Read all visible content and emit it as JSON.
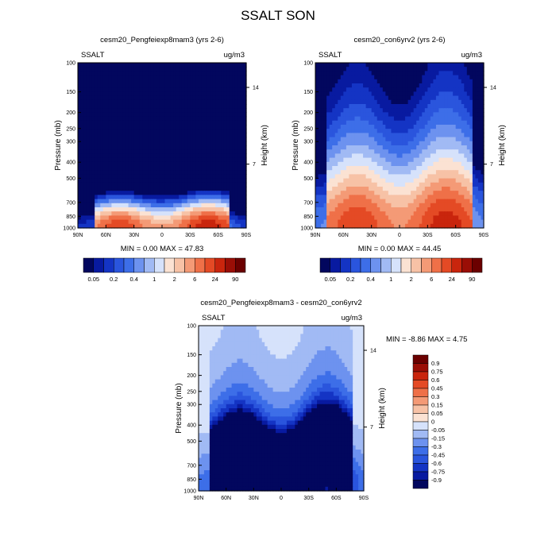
{
  "title": "SSALT SON",
  "pressure_ticks": [
    "100",
    "150",
    "200",
    "250",
    "300",
    "400",
    "500",
    "700",
    "850",
    "1000"
  ],
  "height_ticks": [
    "14",
    "7"
  ],
  "lat_ticks": [
    "90N",
    "60N",
    "30N",
    "0",
    "30S",
    "60S",
    "90S"
  ],
  "abs_levels": [
    "0.05",
    "0.2",
    "0.4",
    "1",
    "2",
    "6",
    "24",
    "90"
  ],
  "diff_levels": [
    "0.9",
    "0.75",
    "0.6",
    "0.45",
    "0.3",
    "0.15",
    "0.05",
    "0",
    "-0.05",
    "-0.15",
    "-0.3",
    "-0.45",
    "-0.6",
    "-0.75",
    "-0.9"
  ],
  "abs_colors": [
    "#02075e",
    "#081aa0",
    "#1434c4",
    "#2a55dd",
    "#3d6ee8",
    "#6d92ef",
    "#a1baf4",
    "#d6e2fb",
    "#fbe2d3",
    "#f7c2a6",
    "#f49a76",
    "#ef7048",
    "#e44a25",
    "#c9250d",
    "#9a0e06",
    "#6b0000"
  ],
  "diff_colors": [
    "#6b0000",
    "#9a0e06",
    "#c9250d",
    "#e44a25",
    "#ef7048",
    "#f49a76",
    "#f7c2a6",
    "#fbe2d3",
    "#d6e2fb",
    "#a1baf4",
    "#6d92ef",
    "#3d6ee8",
    "#2a55dd",
    "#1434c4",
    "#081aa0",
    "#02075e"
  ],
  "chart_data": [
    {
      "type": "heatmap",
      "title": "cesm20_Pengfeiexp8mam3 (yrs 2-6)",
      "variable": "SSALT",
      "units": "ug/m3",
      "xlabel": "",
      "ylabel": "Pressure (mb)",
      "ylabel_right": "Height (km)",
      "xlim": [
        "90N",
        "90S"
      ],
      "ylim": [
        1000,
        100
      ],
      "min_text": "MIN =   0.00  MAX =  47.83",
      "min": 0.0,
      "max": 47.83
    },
    {
      "type": "heatmap",
      "title": "cesm20_con6yrv2 (yrs 2-6)",
      "variable": "SSALT",
      "units": "ug/m3",
      "xlabel": "",
      "ylabel": "Pressure (mb)",
      "ylabel_right": "Height (km)",
      "xlim": [
        "90N",
        "90S"
      ],
      "ylim": [
        1000,
        100
      ],
      "min_text": "MIN =   0.00  MAX =  44.45",
      "min": 0.0,
      "max": 44.45
    },
    {
      "type": "heatmap",
      "title": "cesm20_Pengfeiexp8mam3 - cesm20_con6yrv2",
      "variable": "SSALT",
      "units": "ug/m3",
      "xlabel": "",
      "ylabel": "Pressure (mb)",
      "ylabel_right": "Height (km)",
      "xlim": [
        "90N",
        "90S"
      ],
      "ylim": [
        1000,
        100
      ],
      "min_text": "MIN =  -8.86  MAX =   4.75",
      "min": -8.86,
      "max": 4.75
    }
  ]
}
